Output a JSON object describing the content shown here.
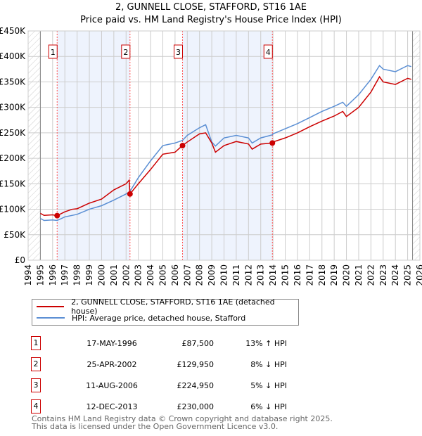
{
  "chart_data": {
    "type": "line",
    "title": "2, GUNNELL CLOSE, STAFFORD, ST16 1AE",
    "subtitle": "Price paid vs. HM Land Registry's House Price Index (HPI)",
    "ylim": [
      0,
      450000
    ],
    "xlim": [
      1994,
      2026
    ],
    "yticks": [
      {
        "v": 0,
        "l": "£0"
      },
      {
        "v": 50000,
        "l": "£50K"
      },
      {
        "v": 100000,
        "l": "£100K"
      },
      {
        "v": 150000,
        "l": "£150K"
      },
      {
        "v": 200000,
        "l": "£200K"
      },
      {
        "v": 250000,
        "l": "£250K"
      },
      {
        "v": 300000,
        "l": "£300K"
      },
      {
        "v": 350000,
        "l": "£350K"
      },
      {
        "v": 400000,
        "l": "£400K"
      },
      {
        "v": 450000,
        "l": "£450K"
      }
    ],
    "xticks": [
      "1994",
      "1995",
      "1996",
      "1997",
      "1998",
      "1999",
      "2000",
      "2001",
      "2002",
      "2003",
      "2004",
      "2005",
      "2006",
      "2007",
      "2008",
      "2009",
      "2010",
      "2011",
      "2012",
      "2013",
      "2014",
      "2015",
      "2016",
      "2017",
      "2018",
      "2019",
      "2020",
      "2021",
      "2022",
      "2023",
      "2024",
      "2025",
      "2026"
    ],
    "series": [
      {
        "name": "2, GUNNELL CLOSE, STAFFORD, ST16 1AE (detached house)",
        "color": "#cc0000",
        "x": [
          1995,
          1995.3,
          1996,
          1996.37,
          1997,
          1997.6,
          1998,
          1999,
          2000,
          2001,
          2002,
          2002.25,
          2002.32,
          2003,
          2004,
          2005,
          2006,
          2006.6,
          2007,
          2008,
          2008.5,
          2009,
          2009.3,
          2010,
          2011,
          2012,
          2012.3,
          2013,
          2013.95,
          2014,
          2015,
          2016,
          2017,
          2018,
          2019,
          2019.7,
          2020,
          2021,
          2022,
          2022.7,
          2023,
          2024,
          2025,
          2025.3
        ],
        "y": [
          92000,
          88000,
          89000,
          87500,
          95000,
          100000,
          101000,
          112000,
          120000,
          138000,
          150000,
          157000,
          129950,
          150000,
          178000,
          208000,
          212000,
          224950,
          232000,
          248000,
          250000,
          230000,
          212000,
          225000,
          233000,
          228000,
          218000,
          228000,
          230000,
          232000,
          240000,
          250000,
          262000,
          273000,
          283000,
          292000,
          282000,
          300000,
          330000,
          360000,
          350000,
          345000,
          357000,
          355000
        ]
      },
      {
        "name": "HPI: Average price, detached house, Stafford",
        "color": "#5b8fd4",
        "x": [
          1995,
          1995.3,
          1996,
          1996.37,
          1997,
          1998,
          1999,
          2000,
          2001,
          2002,
          2002.32,
          2003,
          2004,
          2005,
          2006,
          2006.6,
          2007,
          2008,
          2008.5,
          2009,
          2009.3,
          2010,
          2011,
          2012,
          2012.3,
          2013,
          2013.95,
          2014,
          2015,
          2016,
          2017,
          2018,
          2019,
          2019.7,
          2020,
          2021,
          2022,
          2022.7,
          2023,
          2024,
          2025,
          2025.3
        ],
        "y": [
          82000,
          78000,
          79000,
          78000,
          85000,
          90000,
          100000,
          107000,
          118000,
          130000,
          135000,
          162000,
          195000,
          225000,
          230000,
          235000,
          245000,
          260000,
          266000,
          232000,
          224000,
          240000,
          245000,
          240000,
          230000,
          240000,
          246000,
          248000,
          258000,
          268000,
          280000,
          292000,
          302000,
          310000,
          302000,
          325000,
          355000,
          382000,
          375000,
          370000,
          382000,
          380000
        ]
      }
    ],
    "sales": [
      {
        "n": "1",
        "x": 1996.37,
        "y": 87500
      },
      {
        "n": "2",
        "x": 2002.32,
        "y": 129950
      },
      {
        "n": "3",
        "x": 2006.61,
        "y": 224950
      },
      {
        "n": "4",
        "x": 2013.95,
        "y": 230000
      }
    ],
    "shaded": [
      [
        1996.37,
        2002.32
      ],
      [
        2006.61,
        2013.95
      ]
    ],
    "hatched": [
      [
        1994,
        1995
      ],
      [
        2025.4,
        2026
      ]
    ]
  },
  "legend": {
    "property": "2, GUNNELL CLOSE, STAFFORD, ST16 1AE (detached house)",
    "hpi": "HPI: Average price, detached house, Stafford"
  },
  "transactions": [
    {
      "n": "1",
      "date": "17-MAY-1996",
      "price": "£87,500",
      "hpi": "13% ↑ HPI"
    },
    {
      "n": "2",
      "date": "25-APR-2002",
      "price": "£129,950",
      "hpi": "8% ↓ HPI"
    },
    {
      "n": "3",
      "date": "11-AUG-2006",
      "price": "£224,950",
      "hpi": "5% ↓ HPI"
    },
    {
      "n": "4",
      "date": "12-DEC-2013",
      "price": "£230,000",
      "hpi": "6% ↓ HPI"
    }
  ],
  "footer": {
    "line1": "Contains HM Land Registry data © Crown copyright and database right 2025.",
    "line2": "This data is licensed under the Open Government Licence v3.0."
  }
}
